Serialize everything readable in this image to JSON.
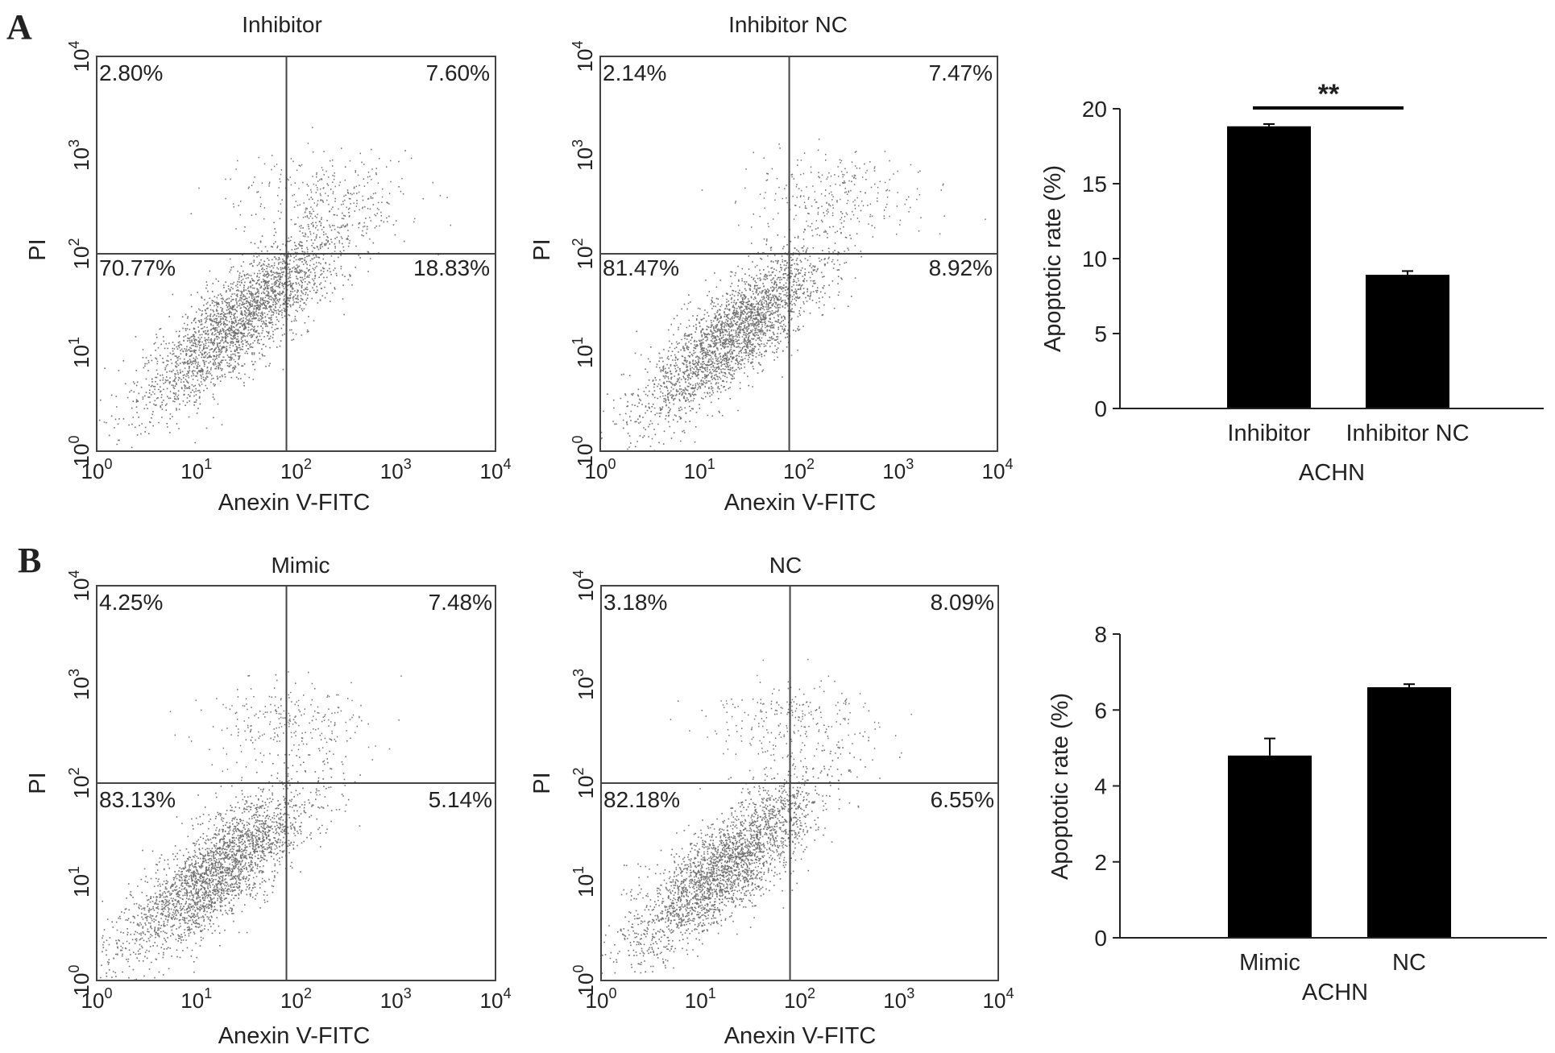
{
  "panels": [
    {
      "letter": "A"
    },
    {
      "letter": "B"
    }
  ],
  "chart_data": [
    {
      "type": "scatter",
      "panel": "A",
      "title": "Inhibitor",
      "xlabel": "Anexin V-FITC",
      "ylabel": "PI",
      "xscale": "log",
      "yscale": "log",
      "xlim": [
        1,
        10000
      ],
      "ylim": [
        1,
        10000
      ],
      "gate_x": 80,
      "gate_y": 100,
      "quadrants": {
        "upper_left": "2.80%",
        "upper_right": "7.60%",
        "lower_left": "70.77%",
        "lower_right": "18.83%"
      },
      "tick_labels": [
        "10^0",
        "10^1",
        "10^2",
        "10^3",
        "10^4"
      ],
      "cluster": {
        "center_log_x": 1.45,
        "center_log_y": 1.35,
        "spread": 0.55,
        "upper_center_log_x": 2.25,
        "upper_center_log_y": 2.6
      },
      "grid": false
    },
    {
      "type": "scatter",
      "panel": "A",
      "title": "Inhibitor NC",
      "xlabel": "Anexin V-FITC",
      "ylabel": "PI",
      "xscale": "log",
      "yscale": "log",
      "xlim": [
        1,
        10000
      ],
      "ylim": [
        1,
        10000
      ],
      "gate_x": 80,
      "gate_y": 100,
      "quadrants": {
        "upper_left": "2.14%",
        "upper_right": "7.47%",
        "lower_left": "81.47%",
        "lower_right": "8.92%"
      },
      "tick_labels": [
        "10^0",
        "10^1",
        "10^2",
        "10^3",
        "10^4"
      ],
      "cluster": {
        "center_log_x": 1.35,
        "center_log_y": 1.2,
        "spread": 0.5,
        "upper_center_log_x": 2.4,
        "upper_center_log_y": 2.6
      },
      "grid": false
    },
    {
      "type": "bar",
      "panel": "A",
      "categories": [
        "Inhibitor",
        "Inhibitor NC"
      ],
      "values": [
        18.83,
        8.92
      ],
      "errors": [
        0.15,
        0.25
      ],
      "xlabel": "ACHN",
      "ylabel": "Apoptotic rate (%)",
      "ylim": [
        0,
        20
      ],
      "yticks": [
        0,
        5,
        10,
        15,
        20
      ],
      "significance": "**",
      "bar_color": "#000000"
    },
    {
      "type": "scatter",
      "panel": "B",
      "title": "Mimic",
      "xlabel": "Anexin V-FITC",
      "ylabel": "PI",
      "xscale": "log",
      "yscale": "log",
      "xlim": [
        1,
        10000
      ],
      "ylim": [
        1,
        10000
      ],
      "gate_x": 80,
      "gate_y": 100,
      "quadrants": {
        "upper_left": "4.25%",
        "upper_right": "7.48%",
        "lower_left": "83.13%",
        "lower_right": "5.14%"
      },
      "tick_labels": [
        "10^0",
        "10^1",
        "10^2",
        "10^3",
        "10^4"
      ],
      "cluster": {
        "center_log_x": 1.2,
        "center_log_y": 1.1,
        "spread": 0.5,
        "upper_center_log_x": 1.9,
        "upper_center_log_y": 2.6
      },
      "grid": false
    },
    {
      "type": "scatter",
      "panel": "B",
      "title": "NC",
      "xlabel": "Anexin V-FITC",
      "ylabel": "PI",
      "xscale": "log",
      "yscale": "log",
      "xlim": [
        1,
        10000
      ],
      "ylim": [
        1,
        10000
      ],
      "gate_x": 80,
      "gate_y": 100,
      "quadrants": {
        "upper_left": "3.18%",
        "upper_right": "8.09%",
        "lower_left": "82.18%",
        "lower_right": "6.55%"
      },
      "tick_labels": [
        "10^0",
        "10^1",
        "10^2",
        "10^3",
        "10^4"
      ],
      "cluster": {
        "center_log_x": 1.25,
        "center_log_y": 1.15,
        "spread": 0.5,
        "upper_center_log_x": 1.95,
        "upper_center_log_y": 2.6
      },
      "grid": false
    },
    {
      "type": "bar",
      "panel": "B",
      "categories": [
        "Mimic",
        "NC"
      ],
      "values": [
        4.8,
        6.6
      ],
      "errors": [
        0.45,
        0.08
      ],
      "xlabel": "ACHN",
      "ylabel": "Apoptotic rate (%)",
      "ylim": [
        0,
        8
      ],
      "yticks": [
        0,
        2,
        4,
        6,
        8
      ],
      "significance": "",
      "bar_color": "#000000"
    }
  ]
}
